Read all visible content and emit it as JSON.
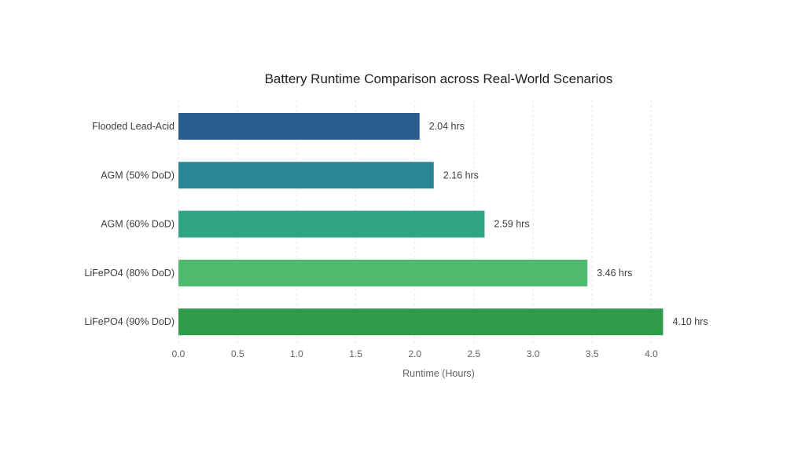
{
  "chart_data": {
    "type": "bar",
    "orientation": "horizontal",
    "title": "Battery Runtime Comparison across Real-World Scenarios",
    "xlabel": "Runtime (Hours)",
    "ylabel": "",
    "xlim": [
      0,
      4.2
    ],
    "xticks": [
      "0.0",
      "0.5",
      "1.0",
      "1.5",
      "2.0",
      "2.5",
      "3.0",
      "3.5",
      "4.0"
    ],
    "grid": true,
    "categories": [
      "Flooded Lead-Acid",
      "AGM (50% DoD)",
      "AGM (60% DoD)",
      "LiFePO4 (80% DoD)",
      "LiFePO4 (90% DoD)"
    ],
    "values": [
      2.04,
      2.16,
      2.59,
      3.46,
      4.1
    ],
    "data_labels": [
      "2.04 hrs",
      "2.16 hrs",
      "2.59 hrs",
      "3.46 hrs",
      "4.10 hrs"
    ],
    "colors": [
      "#2b5c8f",
      "#2a8595",
      "#2fa584",
      "#4fba6e",
      "#2e9b4a"
    ]
  }
}
